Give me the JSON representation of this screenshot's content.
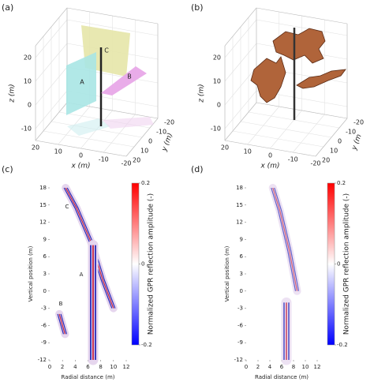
{
  "chart_data": [
    {
      "type": "surface3d",
      "panel_label": "(a)",
      "xlabel": "x (m)",
      "ylabel": "y (m)",
      "zlabel": "z (m)",
      "xlim": [
        -20,
        20
      ],
      "ylim": [
        -20,
        20
      ],
      "zlim": [
        -15,
        25
      ],
      "xticks": [
        20,
        10,
        0,
        -10,
        -20
      ],
      "yticks": [
        -20,
        -10,
        0,
        10,
        20
      ],
      "zticks": [
        -10,
        0,
        10,
        20
      ],
      "annotations": [
        "A",
        "B",
        "C"
      ]
    },
    {
      "type": "surface3d",
      "panel_label": "(b)",
      "xlabel": "x (m)",
      "ylabel": "y (m",
      "zlabel": "z (m)",
      "xlim": [
        -20,
        20
      ],
      "ylim": [
        -20,
        20
      ],
      "zlim": [
        -15,
        25
      ],
      "xticks": [
        20,
        10,
        0,
        -10,
        -20
      ],
      "yticks": [
        -20,
        -10,
        0,
        10,
        20
      ],
      "zticks": [
        -10,
        0,
        10,
        20
      ]
    },
    {
      "type": "heatmap",
      "panel_label": "(c)",
      "xlabel": "Radial distance (m)",
      "ylabel": "Vertical position (m)",
      "colorbar_label": "Normalized GPR reflection amplitude (-)",
      "xlim": [
        0,
        12
      ],
      "ylim": [
        -12,
        18
      ],
      "xticks": [
        0,
        2,
        4,
        6,
        8,
        10,
        12
      ],
      "yticks": [
        -12,
        -9,
        -6,
        -3,
        0,
        3,
        6,
        9,
        12,
        15,
        18
      ],
      "clim": [
        -0.2,
        0.2
      ],
      "cticks": [
        0.2,
        0,
        -0.2
      ],
      "colors": [
        "#0000ff",
        "#ffffff",
        "#ff0000"
      ],
      "features": [
        {
          "x": [
            2.5,
            4.2,
            6.5,
            8.3,
            10
          ],
          "y": [
            18,
            14.5,
            8.5,
            2,
            -3
          ]
        },
        {
          "x": [
            6.8,
            6.8
          ],
          "y": [
            8,
            -12
          ]
        },
        {
          "x": [
            1.5,
            2.4
          ],
          "y": [
            -4,
            -7.5
          ]
        }
      ],
      "annotations": [
        "C",
        "A",
        "B"
      ]
    },
    {
      "type": "heatmap",
      "panel_label": "(d)",
      "xlabel": "Radial distance (m)",
      "ylabel": "Vertical position (m)",
      "colorbar_label": "Normalized GPR reflection amplitude (-)",
      "xlim": [
        0,
        12
      ],
      "ylim": [
        -12,
        18
      ],
      "xticks": [
        0,
        2,
        4,
        6,
        8,
        10,
        12
      ],
      "yticks": [
        -12,
        -9,
        -6,
        -3,
        0,
        3,
        6,
        9,
        12,
        15,
        18
      ],
      "clim": [
        -0.2,
        0.2
      ],
      "cticks": [
        0.2,
        0,
        -0.2
      ],
      "colors": [
        "#0000ff",
        "#ffffff",
        "#ff0000"
      ],
      "features": [
        {
          "x": [
            4.5,
            5.7,
            7.3,
            8.6
          ],
          "y": [
            18,
            14,
            7,
            0
          ]
        },
        {
          "x": [
            6.8,
            6.8
          ],
          "y": [
            -2,
            -12
          ]
        }
      ]
    }
  ]
}
